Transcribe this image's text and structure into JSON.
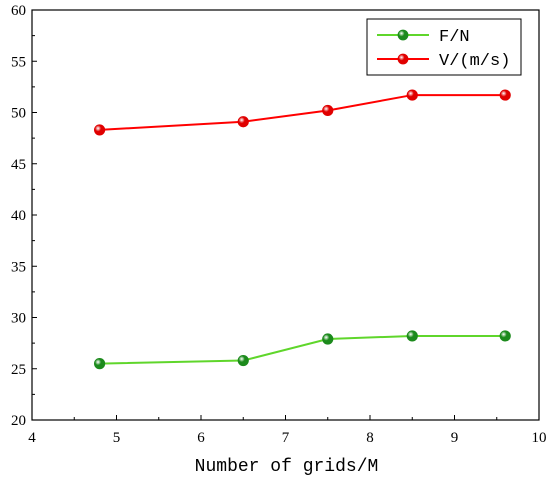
{
  "chart_data": {
    "type": "line",
    "xlabel": "Number of grids/M",
    "ylabel": "",
    "title": "",
    "xlim": [
      4,
      10
    ],
    "ylim": [
      20,
      60
    ],
    "xticks": [
      4,
      5,
      6,
      7,
      8,
      9,
      10
    ],
    "yticks": [
      20,
      25,
      30,
      35,
      40,
      45,
      50,
      55,
      60
    ],
    "grid": false,
    "legend_position": "top-right",
    "x": [
      4.8,
      6.5,
      7.5,
      8.5,
      9.6
    ],
    "series": [
      {
        "name": "F/N",
        "color": "#5fd62b",
        "marker_color": "#1c8a1c",
        "values": [
          25.5,
          25.8,
          27.9,
          28.2,
          28.2
        ]
      },
      {
        "name": "V/(m/s)",
        "color": "#ff0000",
        "marker_color": "#e00000",
        "values": [
          48.3,
          49.1,
          50.2,
          51.7,
          51.7
        ]
      }
    ]
  }
}
